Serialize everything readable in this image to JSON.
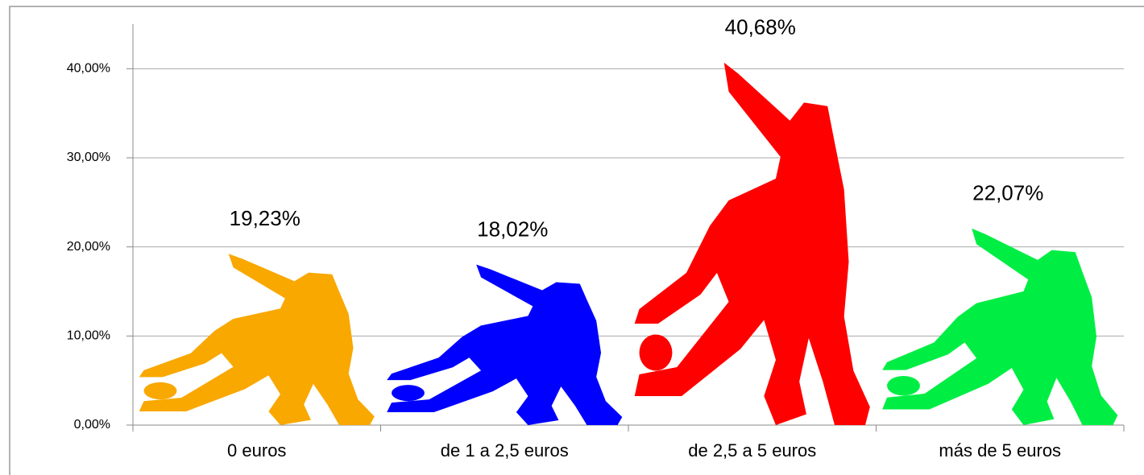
{
  "chart_data": {
    "type": "pictograph",
    "categories": [
      "0 euros",
      "de 1 a 2,5 euros",
      "de 2,5 a 5 euros",
      "más de 5 euros"
    ],
    "values": [
      19.23,
      18.02,
      40.68,
      22.07
    ],
    "value_labels": [
      "19,23%",
      "18,02%",
      "40,68%",
      "22,07%"
    ],
    "colors": [
      "#f9a800",
      "#0000ff",
      "#ff0000",
      "#00ee44"
    ],
    "ylim": [
      0,
      45
    ],
    "yticks": [
      {
        "value": 0,
        "label": "0,00%"
      },
      {
        "value": 10,
        "label": "10,00%"
      },
      {
        "value": 20,
        "label": "20,00%"
      },
      {
        "value": 30,
        "label": "30,00%"
      },
      {
        "value": 40,
        "label": "40,00%"
      }
    ],
    "grid": true
  }
}
